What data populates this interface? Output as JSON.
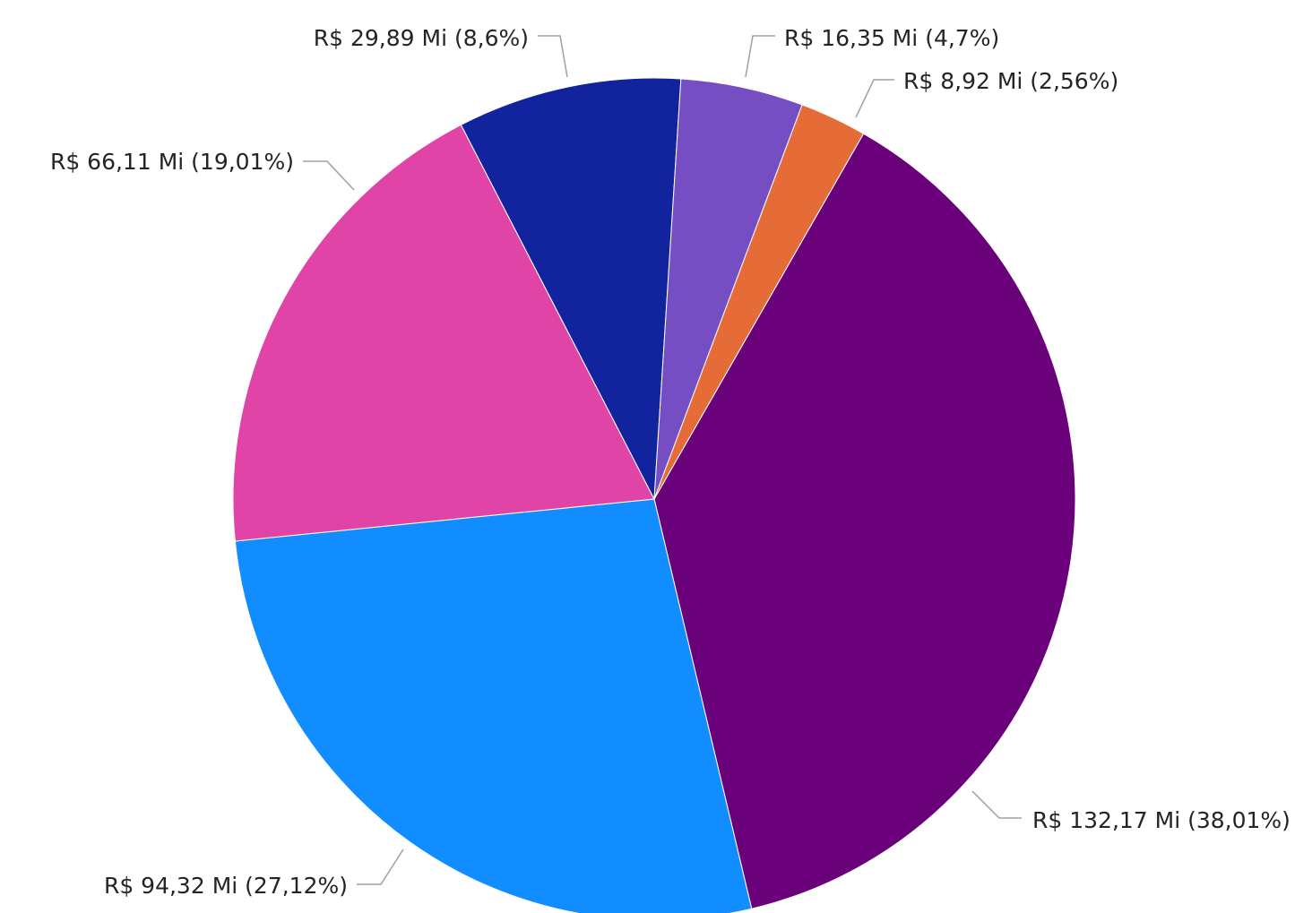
{
  "chart_data": {
    "type": "pie",
    "values": [
      132.17,
      94.32,
      66.11,
      29.89,
      16.35,
      8.92
    ],
    "value_labels": [
      "R$ 132,17 Mi (38,01%)",
      "R$ 94,32 Mi (27,12%)",
      "R$ 66,11 Mi (19,01%)",
      "R$ 29,89 Mi (8,6%)",
      "R$ 16,35 Mi (4,7%)",
      "R$ 8,92 Mi (2,56%)"
    ],
    "colors": [
      "#6B007B",
      "#118DFF",
      "#E044A7",
      "#12239E",
      "#744EC2",
      "#E66C37"
    ]
  }
}
